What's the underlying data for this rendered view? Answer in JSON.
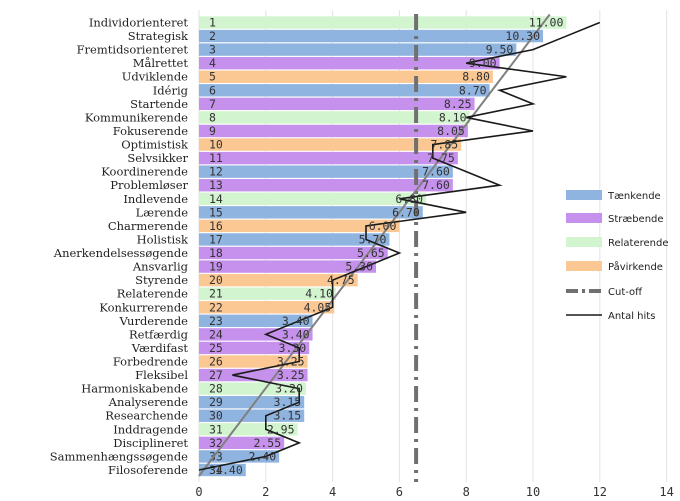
{
  "chart_data": {
    "type": "bar",
    "orientation": "horizontal",
    "xlim": [
      0,
      14
    ],
    "xticks": [
      "0",
      "2",
      "4",
      "6",
      "8",
      "10",
      "12",
      "14"
    ],
    "grid": "vertical",
    "cutoff_value": 6.5,
    "categories": [
      "Individorienteret",
      "Strategisk",
      "Fremtidsorienteret",
      "Målrettet",
      "Udviklende",
      "Idérig",
      "Startende",
      "Kommunikerende",
      "Fokuserende",
      "Optimistisk",
      "Selvsikker",
      "Koordinerende",
      "Problemløser",
      "Indlevende",
      "Lærende",
      "Charmerende",
      "Holistisk",
      "Anerkendelsessøgende",
      "Ansvarlig",
      "Styrende",
      "Relaterende",
      "Konkurrerende",
      "Vurderende",
      "Retfærdig",
      "Værdifast",
      "Forbedrende",
      "Fleksibel",
      "Harmoniskabende",
      "Analyserende",
      "Researchende",
      "Inddragende",
      "Disciplineret",
      "Sammenhængssøgende",
      "Filosoferende"
    ],
    "ranks": [
      "1",
      "2",
      "3",
      "4",
      "5",
      "6",
      "7",
      "8",
      "9",
      "10",
      "11",
      "12",
      "13",
      "14",
      "15",
      "16",
      "17",
      "18",
      "19",
      "20",
      "21",
      "22",
      "23",
      "24",
      "25",
      "26",
      "27",
      "28",
      "29",
      "30",
      "31",
      "32",
      "33",
      "34"
    ],
    "values": [
      11.0,
      10.3,
      9.5,
      9.0,
      8.8,
      8.7,
      8.25,
      8.1,
      8.05,
      7.85,
      7.75,
      7.6,
      7.6,
      6.8,
      6.7,
      6.0,
      5.7,
      5.65,
      5.3,
      4.75,
      4.1,
      4.05,
      3.4,
      3.4,
      3.3,
      3.25,
      3.25,
      3.2,
      3.15,
      3.15,
      2.95,
      2.55,
      2.4,
      1.4
    ],
    "value_labels": [
      "11.00",
      "10.30",
      "9.50",
      "9.00",
      "8.80",
      "8.70",
      "8.25",
      "8.10",
      "8.05",
      "7.85",
      "7.75",
      "7.60",
      "7.60",
      "6.80",
      "6.70",
      "6.00",
      "5.70",
      "5.65",
      "5.30",
      "4.75",
      "4.10",
      "4.05",
      "3.40",
      "3.40",
      "3.30",
      "3.25",
      "3.25",
      "3.20",
      "3.15",
      "3.15",
      "2.95",
      "2.55",
      "2.40",
      "1.40"
    ],
    "groups": [
      "Relaterende",
      "Tænkende",
      "Tænkende",
      "Stræbende",
      "Påvirkende",
      "Tænkende",
      "Stræbende",
      "Relaterende",
      "Stræbende",
      "Påvirkende",
      "Stræbende",
      "Tænkende",
      "Stræbende",
      "Relaterende",
      "Tænkende",
      "Påvirkende",
      "Tænkende",
      "Stræbende",
      "Stræbende",
      "Påvirkende",
      "Relaterende",
      "Påvirkende",
      "Tænkende",
      "Stræbende",
      "Stræbende",
      "Påvirkende",
      "Stræbende",
      "Relaterende",
      "Tænkende",
      "Tænkende",
      "Relaterende",
      "Stræbende",
      "Tænkende",
      "Tænkende"
    ],
    "hits": [
      12,
      11,
      10,
      8,
      11,
      9,
      10,
      8,
      10,
      7,
      7,
      8,
      9,
      6,
      8,
      5,
      5,
      6,
      5,
      4,
      4,
      4,
      3,
      2,
      3,
      3,
      1,
      3,
      3,
      2,
      2,
      3,
      2,
      0
    ],
    "legend": {
      "position": "right",
      "entries": [
        {
          "label": "Tænkende",
          "kind": "bar",
          "color": "#8fb4e0"
        },
        {
          "label": "Stræbende",
          "kind": "bar",
          "color": "#c691ec"
        },
        {
          "label": "Relaterende",
          "kind": "bar",
          "color": "#d2f5d0"
        },
        {
          "label": "Påvirkende",
          "kind": "bar",
          "color": "#fbc894"
        },
        {
          "label": "Cut-off",
          "kind": "dashdot",
          "color": "#707070"
        },
        {
          "label": "Antal hits",
          "kind": "line",
          "color": "#1a1a1a"
        }
      ]
    },
    "trend_line_color": "#808080",
    "title": "",
    "xlabel": "",
    "ylabel": ""
  }
}
